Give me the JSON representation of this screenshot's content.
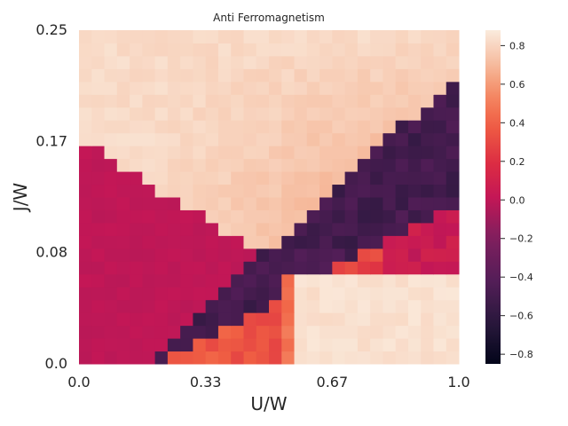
{
  "chart_data": {
    "type": "heatmap",
    "title": "Anti Ferromagnetism",
    "xlabel": "U/W",
    "ylabel": "J/W",
    "xlim": [
      0.0,
      1.0
    ],
    "ylim": [
      0.0,
      0.25
    ],
    "x_ticks": [
      "0.0",
      "0.33",
      "0.67",
      "1.0"
    ],
    "y_ticks": [
      "0.0",
      "0.08",
      "0.17",
      "0.25"
    ],
    "x_cells": 30,
    "y_cells": 26,
    "colorbar": {
      "vmin": -0.85,
      "vmax": 0.88,
      "ticks": [
        "−0.8",
        "−0.6",
        "−0.4",
        "−0.2",
        "0.0",
        "0.2",
        "0.4",
        "0.6",
        "0.8"
      ],
      "tick_values": [
        -0.8,
        -0.6,
        -0.4,
        -0.2,
        0.0,
        0.2,
        0.4,
        0.6,
        0.8
      ]
    },
    "regions": [
      {
        "name": "bottom-left zero region",
        "value": 0.0
      },
      {
        "name": "top-left high region",
        "value": 0.82
      },
      {
        "name": "diagonal negative band",
        "value": -0.55
      },
      {
        "name": "right moderate region",
        "value": 0.28
      },
      {
        "name": "bottom-right high region",
        "value": 0.85
      }
    ]
  }
}
